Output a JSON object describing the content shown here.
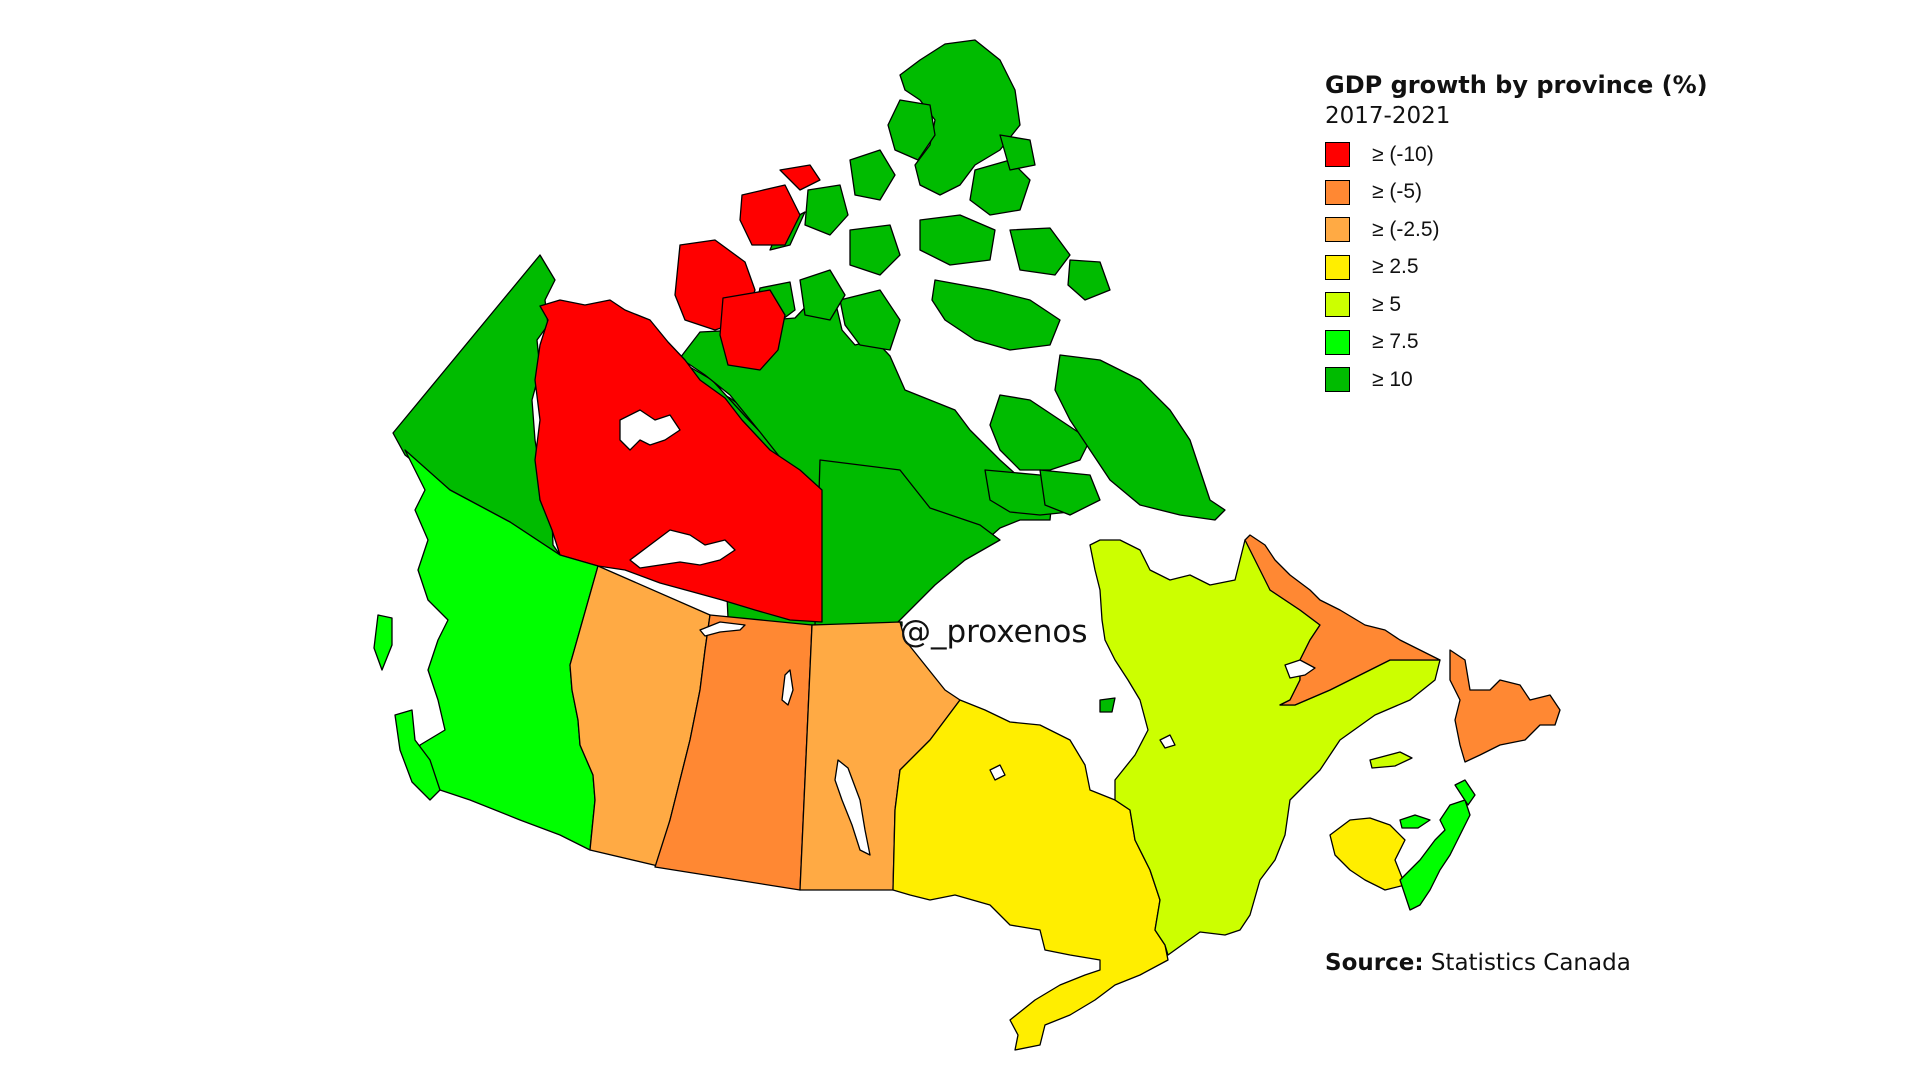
{
  "legend": {
    "title": "GDP growth by province (%)",
    "subtitle": "2017-2021",
    "classes": [
      {
        "label": "≥ (-10)",
        "color": "#ff0000"
      },
      {
        "label": "≥ (-5)",
        "color": "#ff8833"
      },
      {
        "label": "≥ (-2.5)",
        "color": "#ffaa44"
      },
      {
        "label": "≥ 2.5",
        "color": "#ffee00"
      },
      {
        "label": "≥ 5",
        "color": "#ccff00"
      },
      {
        "label": "≥ 7.5",
        "color": "#00ff00"
      },
      {
        "label": "≥ 10",
        "color": "#00bb00"
      }
    ]
  },
  "regions": [
    {
      "name": "Yukon",
      "class": "≥ 10",
      "color": "#00bb00"
    },
    {
      "name": "Northwest Territories",
      "class": "≥ (-10)",
      "color": "#ff0000"
    },
    {
      "name": "Nunavut",
      "class": "≥ 10",
      "color": "#00bb00"
    },
    {
      "name": "British Columbia",
      "class": "≥ 7.5",
      "color": "#00ff00"
    },
    {
      "name": "Alberta",
      "class": "≥ (-2.5)",
      "color": "#ffaa44"
    },
    {
      "name": "Saskatchewan",
      "class": "≥ (-5)",
      "color": "#ff8833"
    },
    {
      "name": "Manitoba",
      "class": "≥ (-2.5)",
      "color": "#ffaa44"
    },
    {
      "name": "Ontario",
      "class": "≥ 2.5",
      "color": "#ffee00"
    },
    {
      "name": "Quebec",
      "class": "≥ 5",
      "color": "#ccff00"
    },
    {
      "name": "Newfoundland and Labrador",
      "class": "≥ (-5)",
      "color": "#ff8833"
    },
    {
      "name": "New Brunswick",
      "class": "≥ 2.5",
      "color": "#ffee00"
    },
    {
      "name": "Nova Scotia",
      "class": "≥ 7.5",
      "color": "#00ff00"
    },
    {
      "name": "Prince Edward Island",
      "class": "≥ 7.5",
      "color": "#00ff00"
    }
  ],
  "watermark": "@_proxenos",
  "source": {
    "label": "Source:",
    "text": "Statistics Canada"
  }
}
